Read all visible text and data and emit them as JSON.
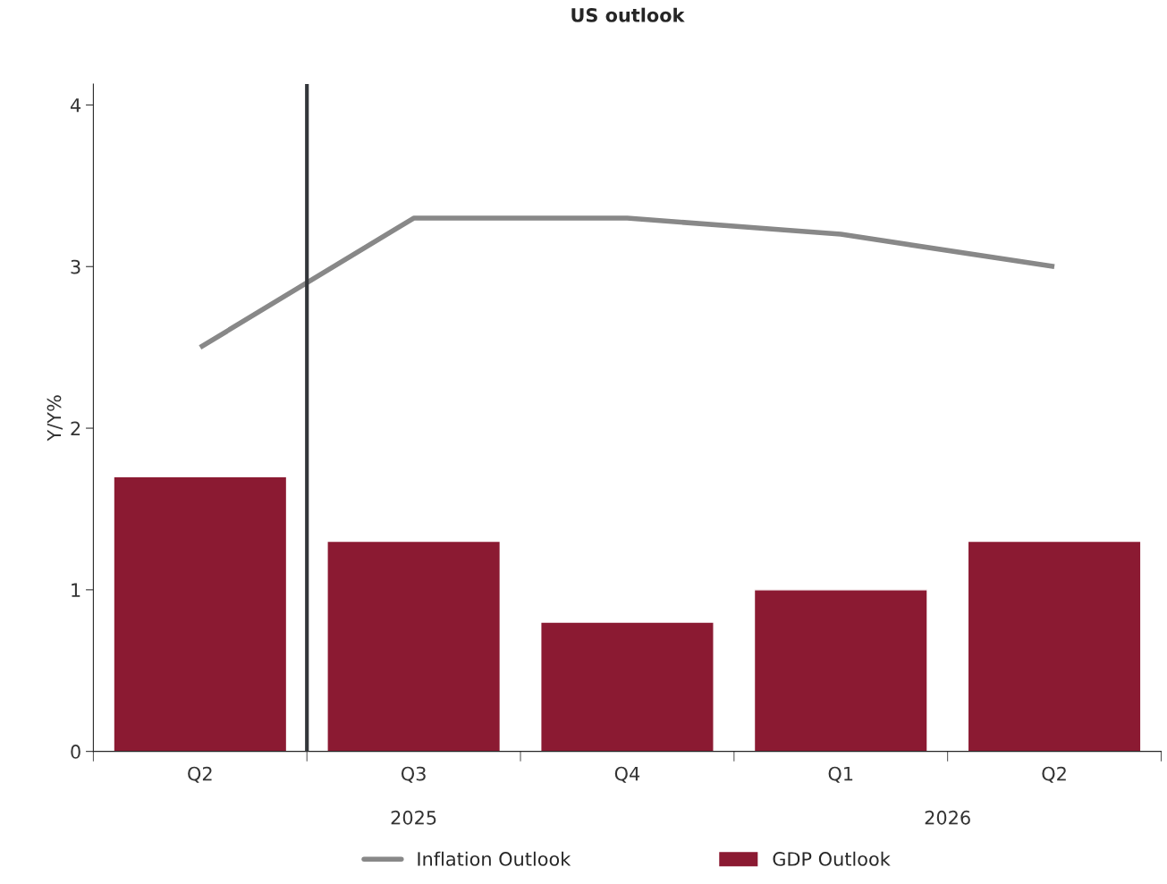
{
  "chart_data": {
    "type": "bar",
    "title": "US outlook",
    "ylabel": "Y/Y%",
    "categories": [
      "Q2",
      "Q3",
      "Q4",
      "Q1",
      "Q2"
    ],
    "series": [
      {
        "name": "Inflation Outlook",
        "type": "line",
        "color": "#888888",
        "values": [
          2.5,
          3.3,
          3.3,
          3.2,
          3.0
        ]
      },
      {
        "name": "GDP Outlook",
        "color": "#8b1a32",
        "values": [
          1.7,
          1.3,
          0.8,
          1.0,
          1.3
        ]
      }
    ],
    "ylim": [
      0,
      4.13
    ],
    "yticks": [
      0,
      1,
      2,
      3,
      4
    ],
    "annotations": [
      "2025",
      "2026"
    ],
    "grid": false,
    "legend": "bottom"
  }
}
